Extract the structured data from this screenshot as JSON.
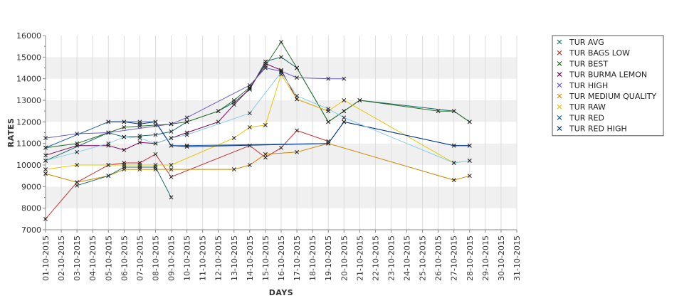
{
  "chart_data": {
    "type": "line",
    "xlabel": "DAYS",
    "ylabel": "RATES",
    "ylim": [
      7000,
      16000
    ],
    "yticks": [
      7000,
      8000,
      9000,
      10000,
      11000,
      12000,
      13000,
      14000,
      15000,
      16000
    ],
    "x_days": [
      "01-10-2015",
      "02-10-2015",
      "03-10-2015",
      "04-10-2015",
      "05-10-2015",
      "06-10-2015",
      "07-10-2015",
      "08-10-2015",
      "09-10-2015",
      "10-10-2015",
      "11-10-2015",
      "12-10-2015",
      "13-10-2015",
      "14-10-2015",
      "15-10-2015",
      "16-10-2015",
      "17-10-2015",
      "18-10-2015",
      "19-10-2015",
      "20-10-2015",
      "21-10-2015",
      "22-10-2015",
      "23-10-2015",
      "24-10-2015",
      "25-10-2015",
      "26-10-2015",
      "27-10-2015",
      "28-10-2015",
      "29-10-2015",
      "30-10-2015",
      "31-10-2015"
    ],
    "grid": true,
    "legend_position": "right",
    "series": [
      {
        "name": "TUR AVG",
        "color": "#1a6e6e",
        "points": [
          [
            1,
            10200
          ],
          [
            5,
            11500
          ],
          [
            6,
            11300
          ],
          [
            7,
            11350
          ],
          [
            8,
            11400
          ],
          [
            9,
            11550
          ],
          [
            10,
            12000
          ],
          [
            12,
            12500
          ],
          [
            13,
            12900
          ],
          [
            14,
            13500
          ],
          [
            15,
            14800
          ],
          [
            16,
            15000
          ],
          [
            17,
            14500
          ],
          [
            19,
            12000
          ],
          [
            20,
            12500
          ],
          [
            21,
            13000
          ],
          [
            27,
            12500
          ],
          [
            28,
            12000
          ]
        ]
      },
      {
        "name": "TUR BAGS LOW",
        "color": "#cc3333",
        "points": [
          [
            1,
            7500
          ],
          [
            3,
            9200
          ],
          [
            5,
            10000
          ],
          [
            6,
            10100
          ],
          [
            7,
            10100
          ],
          [
            8,
            10500
          ],
          [
            9,
            9450
          ],
          [
            14,
            10900
          ],
          [
            15,
            10350
          ],
          [
            16,
            10800
          ],
          [
            17,
            11600
          ],
          [
            19,
            11100
          ]
        ]
      },
      {
        "name": "TUR BEST",
        "color": "#2a6e2a",
        "points": [
          [
            1,
            10800
          ],
          [
            3,
            11000
          ],
          [
            5,
            11500
          ],
          [
            6,
            11750
          ],
          [
            7,
            11800
          ],
          [
            8,
            11850
          ],
          [
            9,
            11900
          ],
          [
            10,
            12000
          ],
          [
            12,
            12500
          ],
          [
            13,
            13000
          ],
          [
            14,
            13600
          ],
          [
            15,
            14600
          ],
          [
            16,
            15700
          ],
          [
            17,
            14500
          ],
          [
            19,
            12000
          ],
          [
            20,
            12500
          ],
          [
            21,
            13000
          ],
          [
            26,
            12500
          ],
          [
            27,
            12500
          ],
          [
            28,
            12000
          ]
        ]
      },
      {
        "name": "TUR BURMA LEMON",
        "color": "#770055",
        "points": [
          [
            1,
            10450
          ],
          [
            3,
            10900
          ],
          [
            5,
            10900
          ],
          [
            6,
            10700
          ],
          [
            7,
            11050
          ],
          [
            8,
            11000
          ],
          [
            9,
            11250
          ],
          [
            10,
            11500
          ],
          [
            12,
            12000
          ],
          [
            13,
            12800
          ],
          [
            14,
            13550
          ],
          [
            15,
            14700
          ],
          [
            16,
            14400
          ],
          [
            17,
            13050
          ],
          [
            19,
            12500
          ]
        ]
      },
      {
        "name": "TUR HIGH",
        "color": "#6a5acd",
        "points": [
          [
            1,
            11250
          ],
          [
            3,
            11450
          ],
          [
            5,
            11500
          ],
          [
            9,
            11900
          ],
          [
            10,
            12200
          ],
          [
            14,
            13700
          ],
          [
            15,
            14500
          ],
          [
            16,
            14350
          ],
          [
            17,
            14050
          ],
          [
            19,
            14000
          ],
          [
            20,
            14000
          ]
        ]
      },
      {
        "name": "TUR MEDIUM QUALITY",
        "color": "#cc8800",
        "points": [
          [
            1,
            9600
          ],
          [
            3,
            9200
          ],
          [
            5,
            9500
          ],
          [
            6,
            9800
          ],
          [
            7,
            9800
          ],
          [
            8,
            9800
          ],
          [
            9,
            9800
          ],
          [
            13,
            9800
          ],
          [
            14,
            10000
          ],
          [
            15,
            10500
          ],
          [
            17,
            10600
          ],
          [
            19,
            11000
          ],
          [
            27,
            9300
          ],
          [
            28,
            9500
          ]
        ]
      },
      {
        "name": "TUR RAW",
        "color": "#e6c800",
        "points": [
          [
            1,
            9800
          ],
          [
            3,
            10000
          ],
          [
            5,
            10000
          ],
          [
            6,
            10000
          ],
          [
            7,
            10000
          ],
          [
            8,
            10000
          ],
          [
            9,
            10000
          ],
          [
            13,
            11250
          ],
          [
            14,
            11750
          ],
          [
            15,
            11850
          ],
          [
            16,
            14200
          ],
          [
            17,
            13050
          ],
          [
            19,
            12500
          ],
          [
            20,
            13000
          ],
          [
            27,
            10100
          ],
          [
            28,
            10200
          ]
        ]
      },
      {
        "name": "TUR RED",
        "color": "#1a5fb4",
        "points": [
          [
            1,
            10800
          ],
          [
            5,
            12000
          ],
          [
            6,
            12000
          ],
          [
            7,
            12000
          ],
          [
            8,
            12000
          ],
          [
            9,
            10900
          ],
          [
            10,
            10900
          ],
          [
            19,
            11000
          ],
          [
            20,
            12000
          ],
          [
            27,
            10900
          ],
          [
            28,
            10900
          ]
        ]
      },
      {
        "name": "TUR RED HIGH",
        "color": "#003399",
        "points": [
          [
            5,
            12000
          ],
          [
            6,
            12000
          ],
          [
            7,
            11900
          ],
          [
            8,
            12000
          ],
          [
            9,
            10900
          ],
          [
            10,
            10850
          ],
          [
            19,
            11000
          ],
          [
            20,
            12000
          ],
          [
            27,
            10900
          ],
          [
            28,
            10900
          ]
        ]
      },
      {
        "name": "",
        "color": "#87ceeb",
        "points": [
          [
            1,
            10200
          ],
          [
            3,
            10600
          ],
          [
            5,
            11000
          ],
          [
            6,
            11300
          ],
          [
            7,
            11250
          ],
          [
            8,
            11000
          ],
          [
            9,
            11250
          ],
          [
            10,
            11400
          ],
          [
            14,
            12400
          ],
          [
            16,
            14300
          ],
          [
            17,
            13200
          ],
          [
            19,
            12600
          ],
          [
            20,
            12200
          ],
          [
            27,
            10100
          ],
          [
            28,
            10200
          ]
        ]
      },
      {
        "name": "",
        "color": "#1a6e6e",
        "points": [
          [
            3,
            9050
          ],
          [
            5,
            9500
          ],
          [
            6,
            9900
          ],
          [
            7,
            9900
          ],
          [
            8,
            9900
          ],
          [
            9,
            8500
          ]
        ]
      }
    ]
  }
}
